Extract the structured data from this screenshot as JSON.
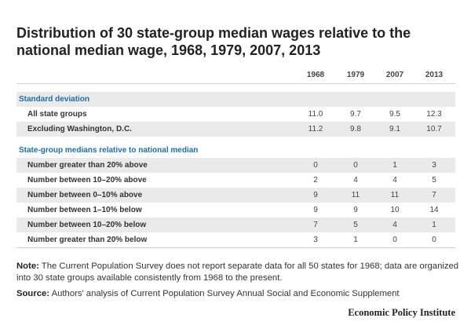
{
  "chart_data": {
    "type": "table",
    "title": "Distribution of 30 state-group median wages relative to the national median wage, 1968, 1979, 2007, 2013",
    "columns": [
      "1968",
      "1979",
      "2007",
      "2013"
    ],
    "sections": [
      {
        "heading": "Standard deviation",
        "rows": [
          {
            "label": "All state groups",
            "values": [
              "11.0",
              "9.7",
              "9.5",
              "12.3"
            ]
          },
          {
            "label": "Excluding Washington, D.C.",
            "values": [
              "11.2",
              "9.8",
              "9.1",
              "10.7"
            ]
          }
        ]
      },
      {
        "heading": "State-group medians relative to national median",
        "rows": [
          {
            "label": "Number greater than 20% above",
            "values": [
              "0",
              "0",
              "1",
              "3"
            ]
          },
          {
            "label": "Number between 10–20% above",
            "values": [
              "2",
              "4",
              "4",
              "5"
            ]
          },
          {
            "label": "Number between 0–10% above",
            "values": [
              "9",
              "11",
              "11",
              "7"
            ]
          },
          {
            "label": "Number between 1–10% below",
            "values": [
              "9",
              "9",
              "10",
              "14"
            ]
          },
          {
            "label": "Number between 10–20% below",
            "values": [
              "7",
              "5",
              "4",
              "1"
            ]
          },
          {
            "label": "Number greater than 20% below",
            "values": [
              "3",
              "1",
              "0",
              "0"
            ]
          }
        ]
      }
    ]
  },
  "note": {
    "label": "Note:",
    "text": " The Current Population Survey does not report separate data for all 50 states for 1968; data are organized into 30 state groups available consistently from 1968 to the present."
  },
  "source": {
    "label": "Source:",
    "text": " Authors' analysis of Current Population Survey Annual Social and Economic Supplement"
  },
  "brand": "Economic Policy Institute"
}
